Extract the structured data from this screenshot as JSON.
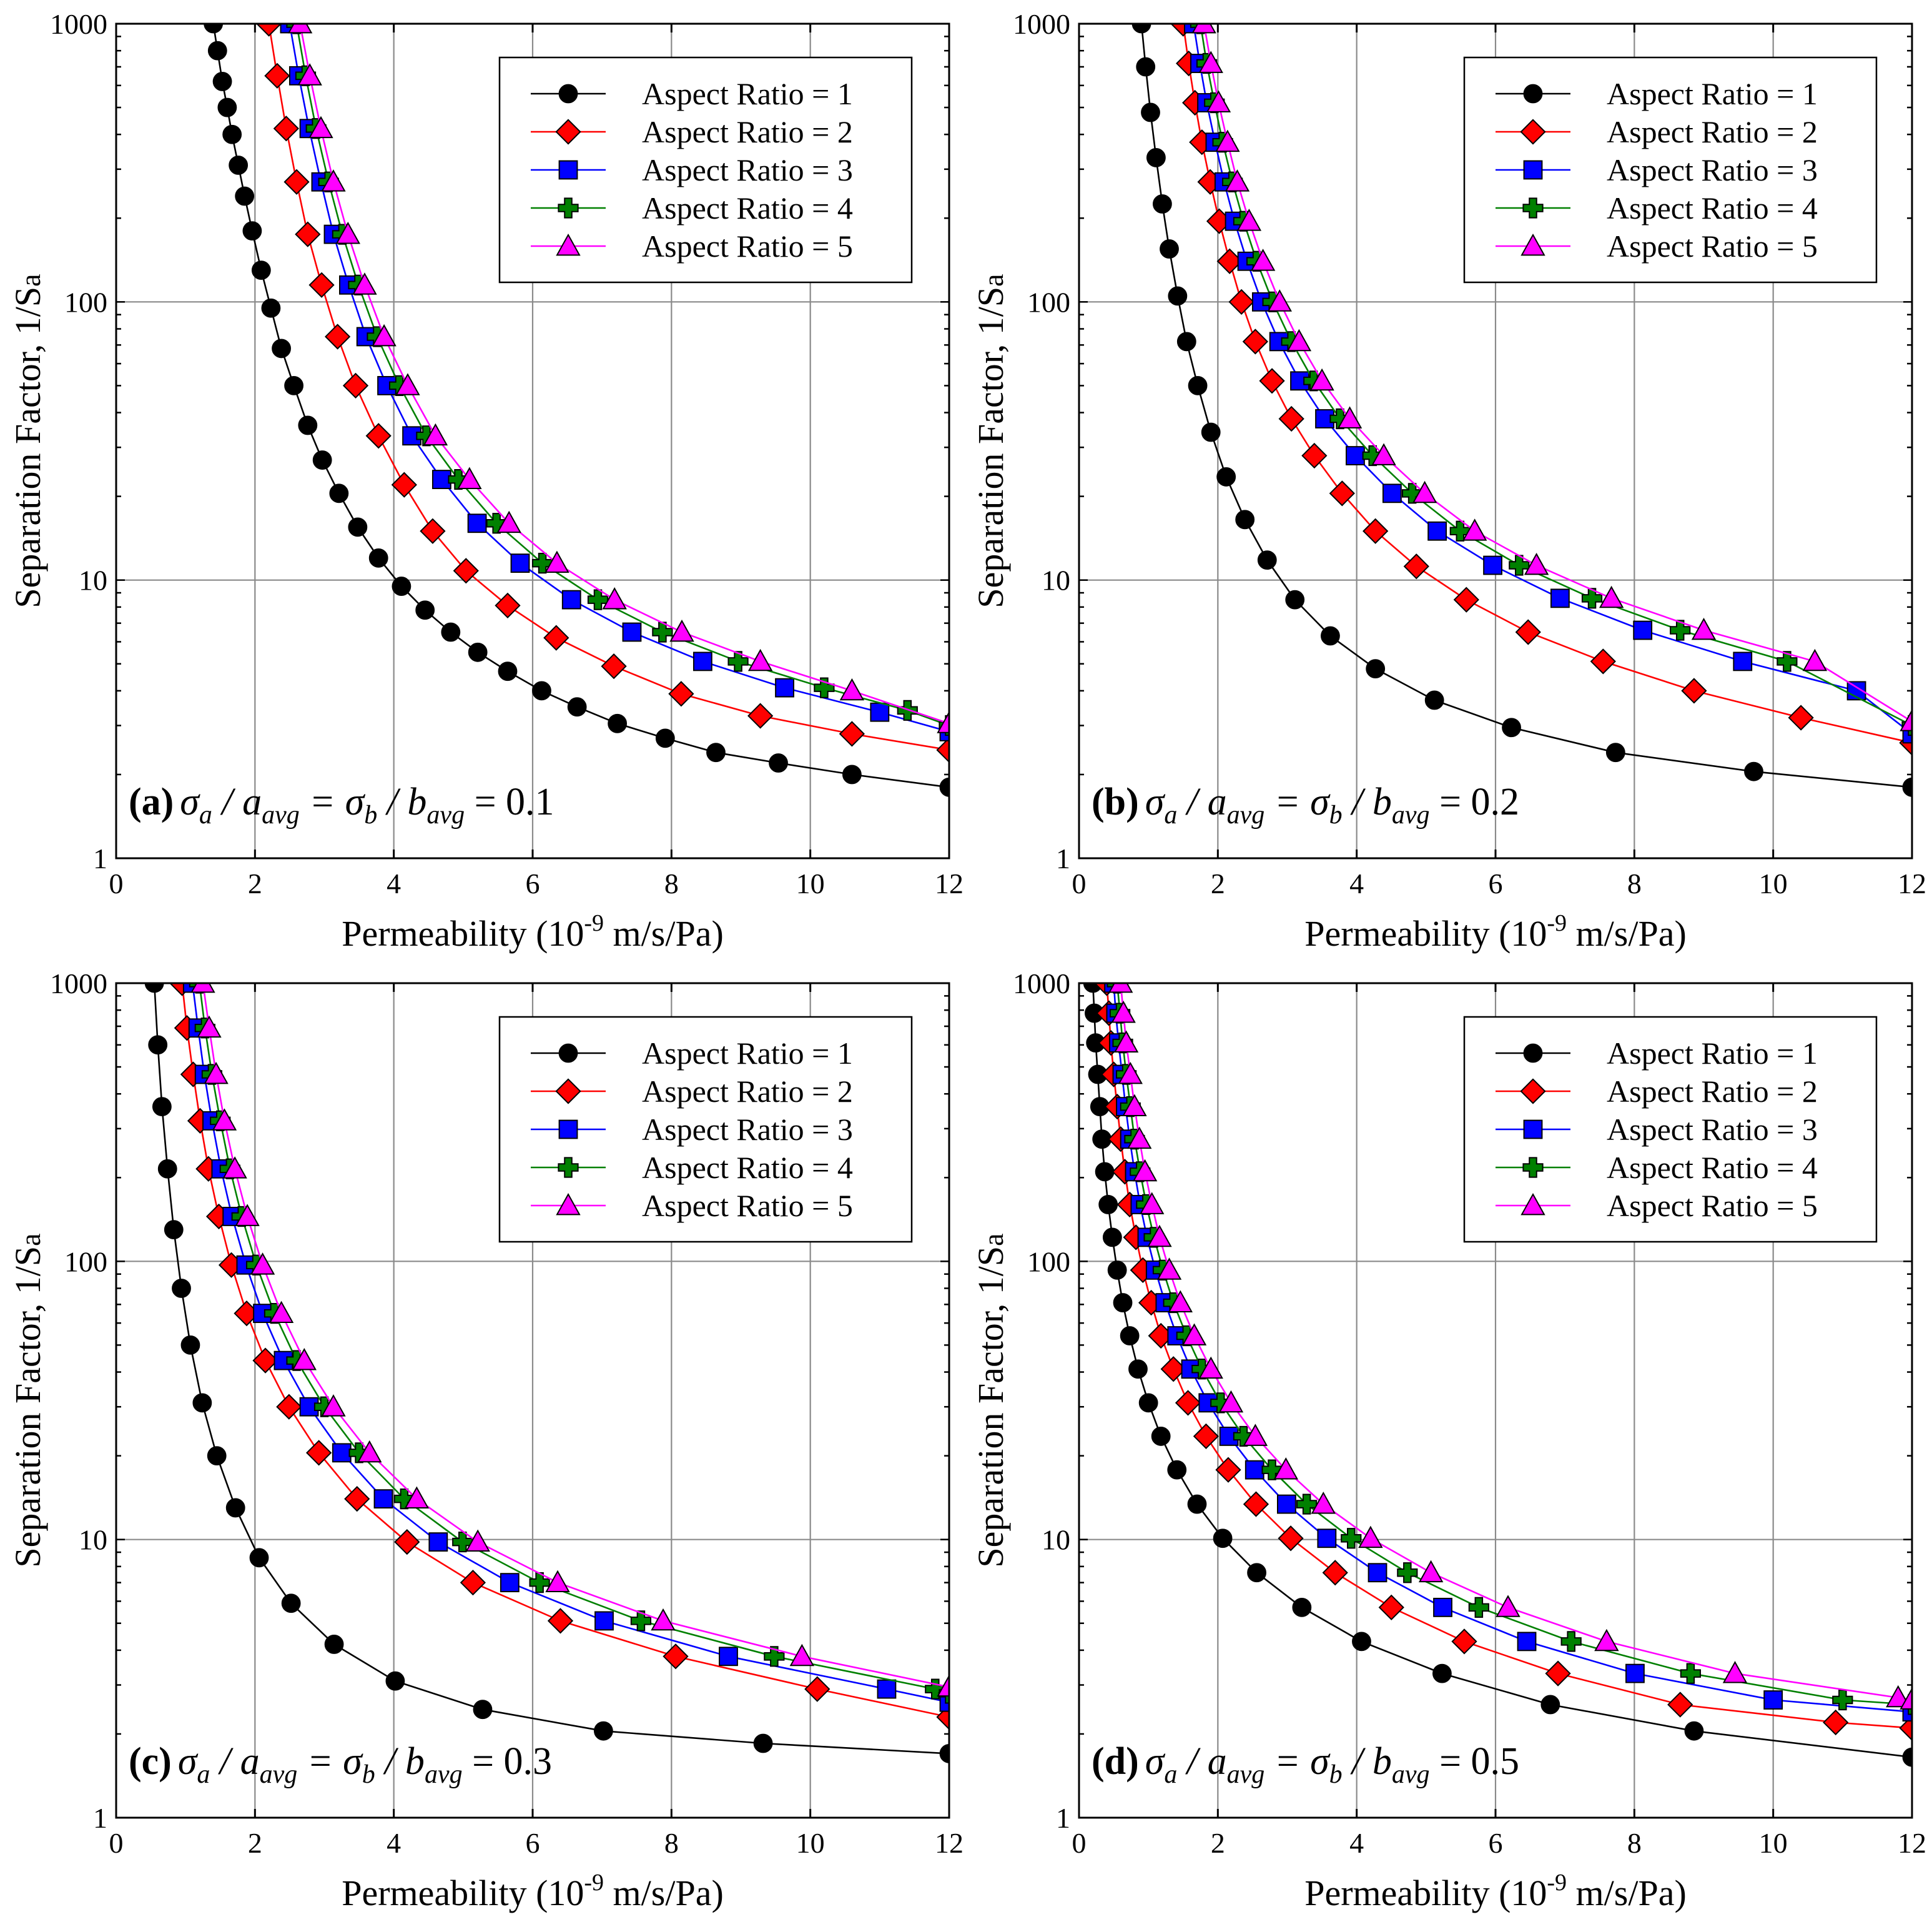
{
  "figure": {
    "colors": {
      "background": "#ffffff",
      "grid": "#8a8a8a",
      "frame": "#000000"
    }
  },
  "series_styles": [
    {
      "name": "Aspect Ratio = 1",
      "color": "#000000",
      "fill": "#000000",
      "marker": "circle"
    },
    {
      "name": "Aspect Ratio = 2",
      "color": "#ff0000",
      "fill": "#ff0000",
      "marker": "diamond"
    },
    {
      "name": "Aspect Ratio = 3",
      "color": "#0000ff",
      "fill": "#0000ff",
      "marker": "square"
    },
    {
      "name": "Aspect Ratio = 4",
      "color": "#008000",
      "fill": "#008000",
      "marker": "plus"
    },
    {
      "name": "Aspect Ratio = 5",
      "color": "#ff00ff",
      "fill": "#ff00ff",
      "marker": "triangle"
    }
  ],
  "chart_data": [
    {
      "type": "line",
      "panel": "(a)",
      "annotation": "σa / aavg = σb / bavg = 0.1",
      "xlabel": "Permeability (10^-9 m/s/Pa)",
      "ylabel": "Separation Factor, 1/Sa",
      "xlim": [
        0,
        12
      ],
      "ylim": [
        1,
        1000
      ],
      "yscale": "log",
      "grid": true,
      "legend_position": "top-right",
      "xticks": [
        "0",
        "2",
        "4",
        "6",
        "8",
        "10",
        "12"
      ],
      "yticks": [
        "1",
        "10",
        "100",
        "1000"
      ],
      "series": [
        {
          "name": "Aspect Ratio = 1",
          "x": [
            1.4,
            1.46,
            1.53,
            1.6,
            1.67,
            1.76,
            1.85,
            1.96,
            2.09,
            2.23,
            2.38,
            2.56,
            2.76,
            2.97,
            3.21,
            3.48,
            3.78,
            4.11,
            4.45,
            4.82,
            5.21,
            5.64,
            6.13,
            6.64,
            7.22,
            7.91,
            8.64,
            9.54,
            10.6,
            12.0
          ],
          "y": [
            1000,
            800,
            620,
            500,
            400,
            310,
            240,
            180,
            130,
            95,
            68,
            50,
            36,
            27,
            20.5,
            15.5,
            12,
            9.5,
            7.8,
            6.5,
            5.5,
            4.7,
            4.0,
            3.5,
            3.05,
            2.7,
            2.4,
            2.2,
            2.0,
            1.8
          ]
        },
        {
          "name": "Aspect Ratio = 2",
          "x": [
            2.2,
            2.32,
            2.45,
            2.6,
            2.76,
            2.96,
            3.19,
            3.45,
            3.78,
            4.15,
            4.56,
            5.04,
            5.64,
            6.34,
            7.17,
            8.14,
            9.28,
            10.6,
            12.0
          ],
          "y": [
            1000,
            650,
            420,
            270,
            175,
            115,
            75,
            50,
            33,
            22,
            15,
            10.8,
            8.1,
            6.2,
            4.9,
            3.9,
            3.25,
            2.8,
            2.45
          ]
        },
        {
          "name": "Aspect Ratio = 3",
          "x": [
            2.5,
            2.63,
            2.78,
            2.95,
            3.13,
            3.35,
            3.6,
            3.9,
            4.26,
            4.69,
            5.2,
            5.82,
            6.56,
            7.43,
            8.45,
            9.63,
            11.0,
            12.0
          ],
          "y": [
            1000,
            650,
            420,
            270,
            175,
            115,
            75,
            50,
            33,
            23,
            16,
            11.5,
            8.5,
            6.5,
            5.1,
            4.1,
            3.35,
            2.85
          ]
        },
        {
          "name": "Aspect Ratio = 4",
          "x": [
            2.6,
            2.73,
            2.88,
            3.06,
            3.26,
            3.49,
            3.76,
            4.08,
            4.47,
            4.93,
            5.48,
            6.14,
            6.94,
            7.87,
            8.96,
            10.2,
            11.4,
            12.0
          ],
          "y": [
            1000,
            650,
            420,
            270,
            175,
            115,
            75,
            50,
            33,
            23,
            16,
            11.5,
            8.5,
            6.5,
            5.1,
            4.1,
            3.4,
            3.0
          ]
        },
        {
          "name": "Aspect Ratio = 5",
          "x": [
            2.65,
            2.79,
            2.95,
            3.13,
            3.34,
            3.58,
            3.86,
            4.2,
            4.6,
            5.09,
            5.66,
            6.35,
            7.18,
            8.15,
            9.28,
            10.6,
            12.0
          ],
          "y": [
            1000,
            650,
            420,
            270,
            175,
            115,
            75,
            50,
            33,
            23,
            16,
            11.5,
            8.5,
            6.5,
            5.1,
            4.0,
            3.05
          ]
        }
      ]
    },
    {
      "type": "line",
      "panel": "(b)",
      "annotation": "σa / aavg = σb / bavg = 0.2",
      "xlabel": "Permeability (10^-9 m/s/Pa)",
      "ylabel": "Separation Factor, 1/Sa",
      "xlim": [
        0,
        12
      ],
      "ylim": [
        1,
        1000
      ],
      "yscale": "log",
      "grid": true,
      "legend_position": "top-right",
      "xticks": [
        "0",
        "2",
        "4",
        "6",
        "8",
        "10",
        "12"
      ],
      "yticks": [
        "1",
        "10",
        "100",
        "1000"
      ],
      "series": [
        {
          "name": "Aspect Ratio = 1",
          "x": [
            0.9,
            0.96,
            1.03,
            1.11,
            1.2,
            1.3,
            1.42,
            1.55,
            1.71,
            1.9,
            2.12,
            2.39,
            2.71,
            3.11,
            3.62,
            4.27,
            5.12,
            6.23,
            7.73,
            9.72,
            12.0
          ],
          "y": [
            1000,
            700,
            480,
            330,
            225,
            155,
            105,
            72,
            50,
            34,
            23.5,
            16.5,
            11.8,
            8.5,
            6.3,
            4.8,
            3.7,
            2.95,
            2.4,
            2.05,
            1.8
          ]
        },
        {
          "name": "Aspect Ratio = 2",
          "x": [
            1.5,
            1.58,
            1.67,
            1.77,
            1.89,
            2.02,
            2.17,
            2.34,
            2.54,
            2.78,
            3.06,
            3.39,
            3.79,
            4.27,
            4.86,
            5.58,
            6.47,
            7.55,
            8.86,
            10.4,
            12.0
          ],
          "y": [
            1000,
            720,
            520,
            375,
            270,
            195,
            140,
            100,
            72,
            52,
            38,
            28,
            20.5,
            15,
            11.2,
            8.5,
            6.5,
            5.1,
            4.0,
            3.2,
            2.6
          ]
        },
        {
          "name": "Aspect Ratio = 3",
          "x": [
            1.65,
            1.74,
            1.84,
            1.96,
            2.09,
            2.24,
            2.42,
            2.63,
            2.88,
            3.18,
            3.54,
            3.98,
            4.51,
            5.16,
            5.96,
            6.93,
            8.12,
            9.56,
            11.2,
            12.0
          ],
          "y": [
            1000,
            720,
            520,
            375,
            270,
            195,
            140,
            100,
            72,
            52,
            38,
            28,
            20.5,
            15,
            11.3,
            8.6,
            6.6,
            5.1,
            4.0,
            2.8
          ]
        },
        {
          "name": "Aspect Ratio = 4",
          "x": [
            1.75,
            1.84,
            1.95,
            2.07,
            2.21,
            2.37,
            2.56,
            2.79,
            3.06,
            3.38,
            3.76,
            4.23,
            4.8,
            5.49,
            6.34,
            7.39,
            8.66,
            10.2,
            12.0
          ],
          "y": [
            1000,
            720,
            520,
            375,
            270,
            195,
            140,
            100,
            72,
            52,
            38,
            28,
            20.5,
            15,
            11.3,
            8.6,
            6.6,
            5.1,
            3.0
          ]
        },
        {
          "name": "Aspect Ratio = 5",
          "x": [
            1.8,
            1.9,
            2.01,
            2.14,
            2.28,
            2.45,
            2.65,
            2.89,
            3.17,
            3.5,
            3.9,
            4.39,
            4.98,
            5.7,
            6.59,
            7.67,
            9.0,
            10.6,
            12.0
          ],
          "y": [
            1000,
            720,
            520,
            375,
            270,
            195,
            140,
            100,
            72,
            52,
            38,
            28,
            20.5,
            15,
            11.3,
            8.6,
            6.6,
            5.1,
            3.1
          ]
        }
      ]
    },
    {
      "type": "line",
      "panel": "(c)",
      "annotation": "σa / aavg = σb / bavg = 0.3",
      "xlabel": "Permeability (10^-9 m/s/Pa)",
      "ylabel": "Separation Factor, 1/Sa",
      "xlim": [
        0,
        12
      ],
      "ylim": [
        1,
        1000
      ],
      "yscale": "log",
      "grid": true,
      "legend_position": "top-right",
      "xticks": [
        "0",
        "2",
        "4",
        "6",
        "8",
        "10",
        "12"
      ],
      "yticks": [
        "1",
        "10",
        "100",
        "1000"
      ],
      "series": [
        {
          "name": "Aspect Ratio = 1",
          "x": [
            0.55,
            0.6,
            0.66,
            0.74,
            0.83,
            0.94,
            1.07,
            1.24,
            1.45,
            1.72,
            2.06,
            2.52,
            3.14,
            4.02,
            5.28,
            7.02,
            9.32,
            12.0
          ],
          "y": [
            1000,
            600,
            360,
            215,
            130,
            80,
            50,
            31,
            20,
            13,
            8.6,
            5.9,
            4.2,
            3.1,
            2.45,
            2.05,
            1.85,
            1.7
          ]
        },
        {
          "name": "Aspect Ratio = 2",
          "x": [
            0.95,
            1.02,
            1.11,
            1.21,
            1.33,
            1.48,
            1.66,
            1.88,
            2.15,
            2.49,
            2.92,
            3.47,
            4.19,
            5.14,
            6.4,
            8.06,
            10.1,
            12.0
          ],
          "y": [
            1000,
            690,
            470,
            320,
            215,
            145,
            97,
            65,
            44,
            30,
            20.5,
            14,
            9.8,
            7.0,
            5.1,
            3.8,
            2.9,
            2.3
          ]
        },
        {
          "name": "Aspect Ratio = 3",
          "x": [
            1.1,
            1.18,
            1.27,
            1.38,
            1.51,
            1.67,
            1.87,
            2.11,
            2.41,
            2.78,
            3.25,
            3.85,
            4.64,
            5.67,
            7.03,
            8.82,
            11.1,
            12.0
          ],
          "y": [
            1000,
            690,
            470,
            320,
            215,
            145,
            97,
            65,
            44,
            30,
            20.5,
            14,
            9.8,
            7.0,
            5.1,
            3.8,
            2.9,
            2.6
          ]
        },
        {
          "name": "Aspect Ratio = 4",
          "x": [
            1.2,
            1.28,
            1.38,
            1.5,
            1.64,
            1.81,
            2.02,
            2.28,
            2.6,
            3.0,
            3.5,
            4.15,
            4.99,
            6.1,
            7.56,
            9.48,
            11.8,
            12.0
          ],
          "y": [
            1000,
            690,
            470,
            320,
            215,
            145,
            97,
            65,
            44,
            30,
            20.5,
            14,
            9.8,
            7.0,
            5.1,
            3.8,
            2.9,
            2.8
          ]
        },
        {
          "name": "Aspect Ratio = 5",
          "x": [
            1.25,
            1.34,
            1.44,
            1.56,
            1.71,
            1.89,
            2.11,
            2.38,
            2.71,
            3.13,
            3.65,
            4.33,
            5.21,
            6.36,
            7.88,
            9.88,
            12.0
          ],
          "y": [
            1000,
            690,
            470,
            320,
            215,
            145,
            97,
            65,
            44,
            30,
            20.5,
            14,
            9.8,
            7.0,
            5.1,
            3.8,
            2.95
          ]
        }
      ]
    },
    {
      "type": "line",
      "panel": "(d)",
      "annotation": "σa / aavg = σb / bavg = 0.5",
      "xlabel": "Permeability (10^-9 m/s/Pa)",
      "ylabel": "Separation Factor, 1/Sa",
      "xlim": [
        0,
        12
      ],
      "ylim": [
        1,
        1000
      ],
      "yscale": "log",
      "grid": true,
      "legend_position": "top-right",
      "xticks": [
        "0",
        "2",
        "4",
        "6",
        "8",
        "10",
        "12"
      ],
      "yticks": [
        "1",
        "10",
        "100",
        "1000"
      ],
      "series": [
        {
          "name": "Aspect Ratio = 1",
          "x": [
            0.2,
            0.22,
            0.24,
            0.27,
            0.3,
            0.33,
            0.37,
            0.42,
            0.48,
            0.55,
            0.63,
            0.73,
            0.85,
            1.0,
            1.18,
            1.41,
            1.7,
            2.07,
            2.56,
            3.21,
            4.07,
            5.23,
            6.79,
            8.86,
            12.0
          ],
          "y": [
            1000,
            780,
            610,
            470,
            360,
            275,
            210,
            160,
            122,
            93,
            71,
            54,
            41,
            31,
            23.5,
            17.8,
            13.4,
            10.1,
            7.6,
            5.7,
            4.3,
            3.3,
            2.55,
            2.05,
            1.65
          ]
        },
        {
          "name": "Aspect Ratio = 2",
          "x": [
            0.4,
            0.43,
            0.46,
            0.5,
            0.55,
            0.6,
            0.66,
            0.73,
            0.82,
            0.92,
            1.04,
            1.18,
            1.36,
            1.57,
            1.83,
            2.15,
            2.55,
            3.05,
            3.69,
            4.5,
            5.55,
            6.9,
            8.66,
            10.9,
            12.0
          ],
          "y": [
            1000,
            780,
            610,
            470,
            360,
            275,
            210,
            160,
            122,
            93,
            71,
            54,
            41,
            31,
            23.5,
            17.8,
            13.4,
            10.1,
            7.6,
            5.7,
            4.3,
            3.3,
            2.55,
            2.2,
            2.1
          ]
        },
        {
          "name": "Aspect Ratio = 3",
          "x": [
            0.5,
            0.53,
            0.57,
            0.62,
            0.67,
            0.73,
            0.8,
            0.88,
            0.98,
            1.1,
            1.24,
            1.41,
            1.61,
            1.86,
            2.16,
            2.53,
            2.99,
            3.57,
            4.3,
            5.24,
            6.45,
            8.01,
            10.0,
            12.0
          ],
          "y": [
            1000,
            780,
            610,
            470,
            360,
            275,
            210,
            160,
            122,
            93,
            71,
            54,
            41,
            31,
            23.5,
            17.8,
            13.4,
            10.1,
            7.6,
            5.7,
            4.3,
            3.3,
            2.65,
            2.4
          ]
        },
        {
          "name": "Aspect Ratio = 4",
          "x": [
            0.55,
            0.59,
            0.63,
            0.68,
            0.74,
            0.8,
            0.88,
            0.97,
            1.08,
            1.21,
            1.36,
            1.55,
            1.77,
            2.04,
            2.37,
            2.78,
            3.28,
            3.92,
            4.73,
            5.76,
            7.09,
            8.81,
            11.0,
            12.0
          ],
          "y": [
            1000,
            780,
            610,
            470,
            360,
            275,
            210,
            160,
            122,
            93,
            71,
            54,
            41,
            31,
            23.5,
            17.8,
            13.4,
            10.1,
            7.6,
            5.7,
            4.3,
            3.3,
            2.65,
            2.55
          ]
        },
        {
          "name": "Aspect Ratio = 5",
          "x": [
            0.6,
            0.64,
            0.68,
            0.74,
            0.8,
            0.87,
            0.95,
            1.05,
            1.16,
            1.3,
            1.46,
            1.66,
            1.9,
            2.19,
            2.54,
            2.98,
            3.52,
            4.2,
            5.07,
            6.18,
            7.6,
            9.45,
            11.8,
            12.0
          ],
          "y": [
            1000,
            780,
            610,
            470,
            360,
            275,
            210,
            160,
            122,
            93,
            71,
            54,
            41,
            31,
            23.5,
            17.8,
            13.4,
            10.1,
            7.6,
            5.7,
            4.3,
            3.3,
            2.7,
            2.65
          ]
        }
      ]
    }
  ]
}
